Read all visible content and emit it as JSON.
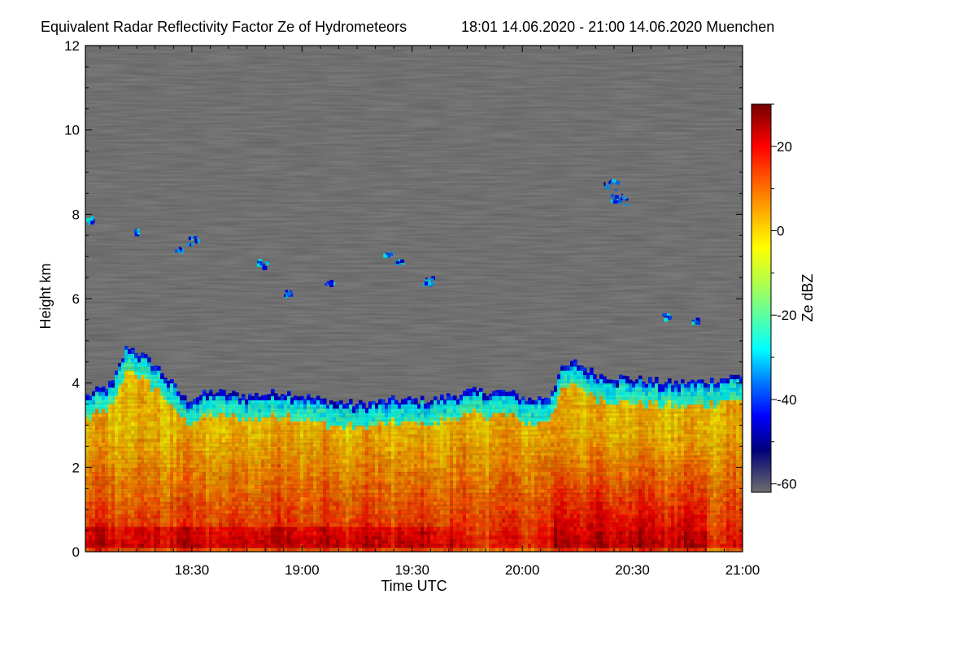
{
  "chart_data": {
    "type": "heatmap",
    "title": "Equivalent Radar Reflectivity Factor Ze of Hydrometeors",
    "subtitle": "18:01 14.06.2020 - 21:00 14.06.2020 Muenchen",
    "xlabel": "Time UTC",
    "ylabel": "Height km",
    "colorbar_label": "Ze dBZ",
    "x_range_minutes_utc": [
      1081,
      1260
    ],
    "x_ticks": [
      {
        "minutes": 1110,
        "label": "18:30"
      },
      {
        "minutes": 1140,
        "label": "19:00"
      },
      {
        "minutes": 1170,
        "label": "19:30"
      },
      {
        "minutes": 1200,
        "label": "20:00"
      },
      {
        "minutes": 1230,
        "label": "20:30"
      },
      {
        "minutes": 1260,
        "label": "21:00"
      }
    ],
    "ylim": [
      0,
      12
    ],
    "y_ticks": [
      {
        "value": 0,
        "label": "0"
      },
      {
        "value": 2,
        "label": "2"
      },
      {
        "value": 4,
        "label": "4"
      },
      {
        "value": 6,
        "label": "6"
      },
      {
        "value": 8,
        "label": "8"
      },
      {
        "value": 10,
        "label": "10"
      },
      {
        "value": 12,
        "label": "12"
      }
    ],
    "colorbar_range_dbz": [
      -62,
      30
    ],
    "colorbar_ticks": [
      {
        "value": 20,
        "label": "20"
      },
      {
        "value": 0,
        "label": "0"
      },
      {
        "value": -20,
        "label": "-20"
      },
      {
        "value": -40,
        "label": "-40"
      },
      {
        "value": -60,
        "label": "-60"
      }
    ],
    "no_signal_color": "#808080",
    "colormap": [
      {
        "dbz": -62,
        "color": "#6e6e6e"
      },
      {
        "dbz": -52,
        "color": "#00007a"
      },
      {
        "dbz": -44,
        "color": "#0000ff"
      },
      {
        "dbz": -36,
        "color": "#0078ff"
      },
      {
        "dbz": -28,
        "color": "#00ffff"
      },
      {
        "dbz": -20,
        "color": "#5cffa0"
      },
      {
        "dbz": -12,
        "color": "#b4ff46"
      },
      {
        "dbz": -4,
        "color": "#ffff00"
      },
      {
        "dbz": 4,
        "color": "#ffb000"
      },
      {
        "dbz": 12,
        "color": "#ff5a00"
      },
      {
        "dbz": 20,
        "color": "#ff0000"
      },
      {
        "dbz": 30,
        "color": "#760000"
      }
    ],
    "cloud_top_profile_km": [
      {
        "minutes": 1081,
        "top": 3.7
      },
      {
        "minutes": 1088,
        "top": 4.0
      },
      {
        "minutes": 1092,
        "top": 4.9
      },
      {
        "minutes": 1097,
        "top": 4.6
      },
      {
        "minutes": 1100,
        "top": 4.4
      },
      {
        "minutes": 1104,
        "top": 4.0
      },
      {
        "minutes": 1108,
        "top": 3.6
      },
      {
        "minutes": 1115,
        "top": 3.8
      },
      {
        "minutes": 1125,
        "top": 3.7
      },
      {
        "minutes": 1135,
        "top": 3.8
      },
      {
        "minutes": 1145,
        "top": 3.6
      },
      {
        "minutes": 1155,
        "top": 3.5
      },
      {
        "minutes": 1165,
        "top": 3.6
      },
      {
        "minutes": 1175,
        "top": 3.6
      },
      {
        "minutes": 1185,
        "top": 3.8
      },
      {
        "minutes": 1195,
        "top": 3.8
      },
      {
        "minutes": 1202,
        "top": 3.6
      },
      {
        "minutes": 1207,
        "top": 3.7
      },
      {
        "minutes": 1210,
        "top": 4.3
      },
      {
        "minutes": 1214,
        "top": 4.5
      },
      {
        "minutes": 1220,
        "top": 4.2
      },
      {
        "minutes": 1230,
        "top": 4.1
      },
      {
        "minutes": 1240,
        "top": 4.0
      },
      {
        "minutes": 1250,
        "top": 4.05
      },
      {
        "minutes": 1260,
        "top": 4.2
      }
    ],
    "high_cloud_patches": [
      {
        "minutes": 1082,
        "height_km": 7.9
      },
      {
        "minutes": 1095,
        "height_km": 7.6
      },
      {
        "minutes": 1106,
        "height_km": 7.2
      },
      {
        "minutes": 1110,
        "height_km": 7.4
      },
      {
        "minutes": 1129,
        "height_km": 6.85
      },
      {
        "minutes": 1136,
        "height_km": 6.15
      },
      {
        "minutes": 1147,
        "height_km": 6.4
      },
      {
        "minutes": 1163,
        "height_km": 7.05
      },
      {
        "minutes": 1166,
        "height_km": 6.9
      },
      {
        "minutes": 1174,
        "height_km": 6.45
      },
      {
        "minutes": 1224,
        "height_km": 8.7
      },
      {
        "minutes": 1226,
        "height_km": 8.35
      },
      {
        "minutes": 1239,
        "height_km": 5.6
      },
      {
        "minutes": 1247,
        "height_km": 5.5
      }
    ]
  }
}
